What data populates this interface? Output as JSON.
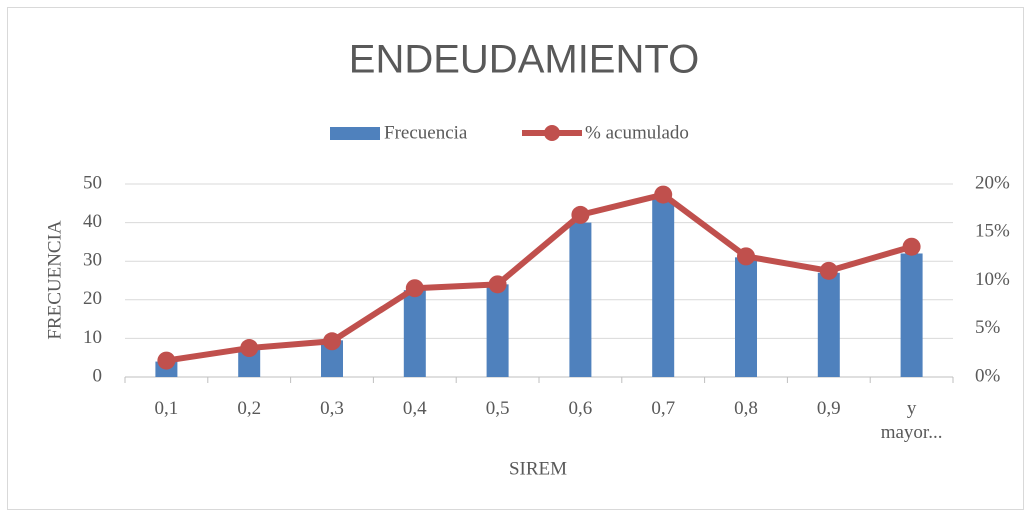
{
  "chart_data": {
    "type": "bar_line",
    "title": "ENDEUDAMIENTO",
    "x_label": "SIREM",
    "y_label": "FRECUENCIA",
    "categories": [
      "0,1",
      "0,2",
      "0,3",
      "0,4",
      "0,5",
      "0,6",
      "0,7",
      "0,8",
      "0,9",
      "y mayor..."
    ],
    "series": [
      {
        "name": "Frecuencia",
        "color": "#4f81bd",
        "type": "bar",
        "values": [
          4,
          7,
          9.5,
          22.5,
          24,
          40,
          46,
          31,
          27,
          32
        ]
      },
      {
        "name": "% acumulado",
        "color": "#c0504d",
        "type": "line",
        "axis": "y2",
        "values": [
          1.7,
          3.0,
          3.7,
          9.2,
          9.6,
          16.8,
          18.9,
          12.5,
          11.0,
          13.5
        ]
      }
    ],
    "ylim": [
      0,
      50
    ],
    "yticks": [
      0,
      10,
      20,
      30,
      40,
      50
    ],
    "y2lim": [
      0,
      20
    ],
    "y2ticks": [
      {
        "value": 0,
        "label": "0%"
      },
      {
        "value": 5,
        "label": "5%"
      },
      {
        "value": 10,
        "label": "10%"
      },
      {
        "value": 15,
        "label": "15%"
      },
      {
        "value": 20,
        "label": "20%"
      }
    ],
    "grid": true,
    "legend": "top"
  }
}
